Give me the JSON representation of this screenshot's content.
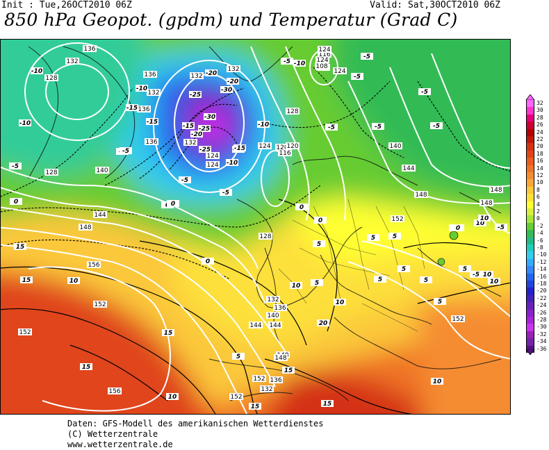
{
  "header": {
    "init": "Init : Tue,26OCT2010 06Z",
    "valid": "Valid: Sat,30OCT2010 06Z",
    "title": "850 hPa Geopot. (gpdm) und Temperatur (Grad C)"
  },
  "legend": {
    "values": [
      "32",
      "30",
      "28",
      "26",
      "24",
      "22",
      "20",
      "18",
      "16",
      "14",
      "12",
      "10",
      "8",
      "6",
      "4",
      "2",
      "0",
      "-2",
      "-4",
      "-6",
      "-8",
      "-10",
      "-12",
      "-14",
      "-16",
      "-18",
      "-20",
      "-22",
      "-24",
      "-26",
      "-28",
      "-30",
      "-32",
      "-34",
      "-36"
    ],
    "colors": [
      "#ff66ff",
      "#ff33cc",
      "#e6007a",
      "#cc0033",
      "#b30000",
      "#c0180a",
      "#d43312",
      "#e0451a",
      "#eb5c20",
      "#f07428",
      "#f58c30",
      "#f8a838",
      "#fbc83a",
      "#fde03a",
      "#ffff33",
      "#d8f03c",
      "#a6e63c",
      "#66cc33",
      "#33bb55",
      "#22bb88",
      "#22ccbb",
      "#33ccee",
      "#33aaff",
      "#3388ff",
      "#2266ee",
      "#2244dd",
      "#2222cc",
      "#4422bb",
      "#6622bb",
      "#8822cc",
      "#aa22dd",
      "#cc33ee",
      "#9922bb",
      "#7722aa",
      "#551188"
    ]
  },
  "map": {
    "geopotential_labels": [
      "136",
      "132",
      "128",
      "136",
      "132",
      "136",
      "140",
      "128",
      "124",
      "120",
      "116",
      "112",
      "108",
      "124",
      "124",
      "124",
      "116",
      "128",
      "120",
      "124",
      "124",
      "132",
      "132",
      "132",
      "136",
      "144",
      "140",
      "148",
      "144",
      "148",
      "148",
      "148",
      "152",
      "152",
      "144",
      "148",
      "152",
      "156",
      "152",
      "156",
      "152",
      "132",
      "136",
      "140",
      "144",
      "148",
      "152",
      "128",
      "136",
      "132"
    ],
    "temperature_labels": [
      "-10",
      "-10",
      "-5",
      "-10",
      "-15",
      "-15",
      "-15",
      "-20",
      "-20",
      "-25",
      "-30",
      "-30",
      "-25",
      "-20",
      "-25",
      "-15",
      "-10",
      "-5",
      "-5",
      "-5",
      "-10",
      "-10",
      "-15",
      "-5",
      "-5",
      "-5",
      "-5",
      "-5",
      "-5",
      "-5",
      "-5",
      "0",
      "0",
      "0",
      "0",
      "0",
      "0",
      "0",
      "5",
      "5",
      "5",
      "5",
      "5",
      "5",
      "5",
      "5",
      "10",
      "10",
      "10",
      "10",
      "10",
      "10",
      "10",
      "15",
      "15",
      "15",
      "15",
      "15",
      "15",
      "20",
      "15",
      "10",
      "5",
      "10",
      "5",
      "0",
      "-5",
      "-5"
    ]
  },
  "footer": {
    "line1": "Daten: GFS-Modell des amerikanischen Wetterdienstes",
    "line2": "(C) Wetterzentrale",
    "line3": "www.wetterzentrale.de"
  },
  "colors": {
    "deep_purple": "#aa22dd",
    "blue": "#2244dd",
    "cyan": "#33ccee",
    "green": "#66cc33",
    "yellow": "#ffff33",
    "orange": "#f58c30",
    "red_orange": "#e0451a"
  }
}
